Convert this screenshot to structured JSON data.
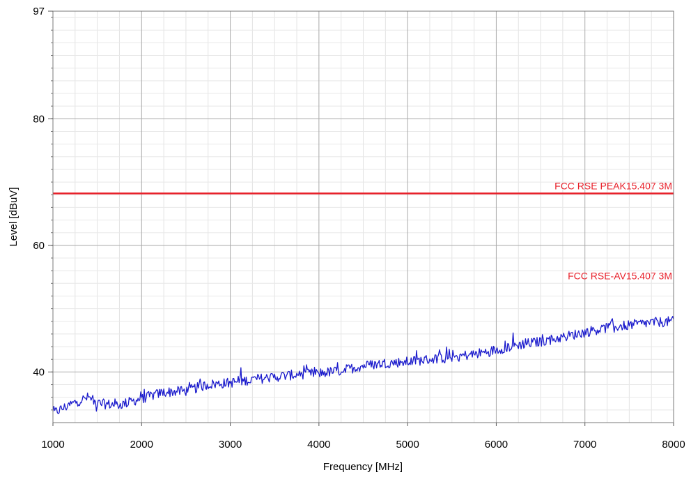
{
  "chart_data": {
    "type": "line",
    "title": "",
    "xlabel": "Frequency [MHz]",
    "ylabel": "Level [dBuV]",
    "xlim": [
      1000,
      8000
    ],
    "ylim": [
      32,
      97
    ],
    "x_ticks": [
      "1000",
      "2000",
      "3000",
      "4000",
      "5000",
      "6000",
      "7000",
      "8000"
    ],
    "y_ticks": [
      "40",
      "60",
      "80",
      "97"
    ],
    "grid": true,
    "limit_lines": [
      {
        "name": "FCC RSE PEAK15.407 3M",
        "y": 68.2,
        "color": "#e8202a"
      },
      {
        "name": "FCC RSE-AV15.407 3M",
        "y": 54.0,
        "color": "#e8202a"
      }
    ],
    "series": [
      {
        "color": "#1a1acc",
        "x": [
          1000,
          1250,
          1400,
          1500,
          1750,
          2000,
          2250,
          2500,
          2750,
          3000,
          3250,
          3500,
          3750,
          4000,
          4250,
          4500,
          4750,
          5000,
          5250,
          5500,
          5750,
          6000,
          6250,
          6500,
          6750,
          7000,
          7250,
          7500,
          7750,
          8000
        ],
        "y": [
          33.5,
          35.2,
          36.0,
          35.0,
          34.8,
          35.8,
          36.8,
          37.0,
          38.0,
          38.3,
          38.8,
          39.2,
          39.6,
          39.8,
          40.2,
          41.0,
          41.4,
          41.6,
          42.0,
          42.4,
          42.8,
          43.5,
          44.3,
          44.8,
          45.5,
          46.3,
          47.0,
          47.4,
          47.8,
          48.0
        ]
      }
    ]
  }
}
